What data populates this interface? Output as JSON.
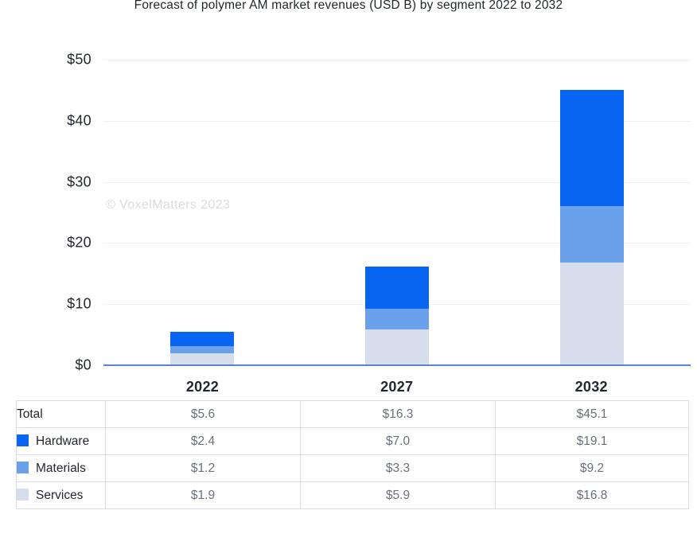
{
  "watermark": "© VoxelMatters 2023",
  "colors": {
    "hardware": "#0765f2",
    "materials": "#6ba0ea",
    "services": "#d6ddeb",
    "axis_line": "#5b84d4",
    "gridline": "#efefef",
    "text_dark": "#23272f",
    "text_value": "#6a707a",
    "watermark": "#dbdbdb",
    "table_border": "#d9dce1"
  },
  "chart_data": {
    "type": "bar",
    "stacked": true,
    "title": "Forecast of polymer AM market revenues (USD B) by segment 2022 to 2032",
    "categories": [
      "2022",
      "2027",
      "2032"
    ],
    "series": [
      {
        "name": "Hardware",
        "color": "#0765f2",
        "values": [
          2.4,
          7.0,
          19.1
        ]
      },
      {
        "name": "Materials",
        "color": "#6ba0ea",
        "values": [
          1.2,
          3.3,
          9.2
        ]
      },
      {
        "name": "Services",
        "color": "#d6ddeb",
        "values": [
          1.9,
          5.9,
          16.8
        ]
      }
    ],
    "stack_order": "first-series-on-top",
    "totals": [
      5.6,
      16.3,
      45.1
    ],
    "xlabel": "",
    "ylabel": "",
    "ylim": [
      0,
      50
    ],
    "ytick_labels": [
      "$50",
      "$40",
      "$30",
      "$20",
      "$10",
      "$0"
    ],
    "ytick_values": [
      50,
      40,
      30,
      20,
      10,
      0
    ],
    "grid": true,
    "legend_position": "table-below"
  },
  "table": {
    "rows": [
      {
        "label": "Total",
        "swatch": null,
        "values": [
          "$5.6",
          "$16.3",
          "$45.1"
        ]
      },
      {
        "label": "Hardware",
        "swatch": "#0765f2",
        "values": [
          "$2.4",
          "$7.0",
          "$19.1"
        ]
      },
      {
        "label": "Materials",
        "swatch": "#6ba0ea",
        "values": [
          "$1.2",
          "$3.3",
          "$9.2"
        ]
      },
      {
        "label": "Services",
        "swatch": "#d6ddeb",
        "values": [
          "$1.9",
          "$5.9",
          "$16.8"
        ]
      }
    ]
  }
}
